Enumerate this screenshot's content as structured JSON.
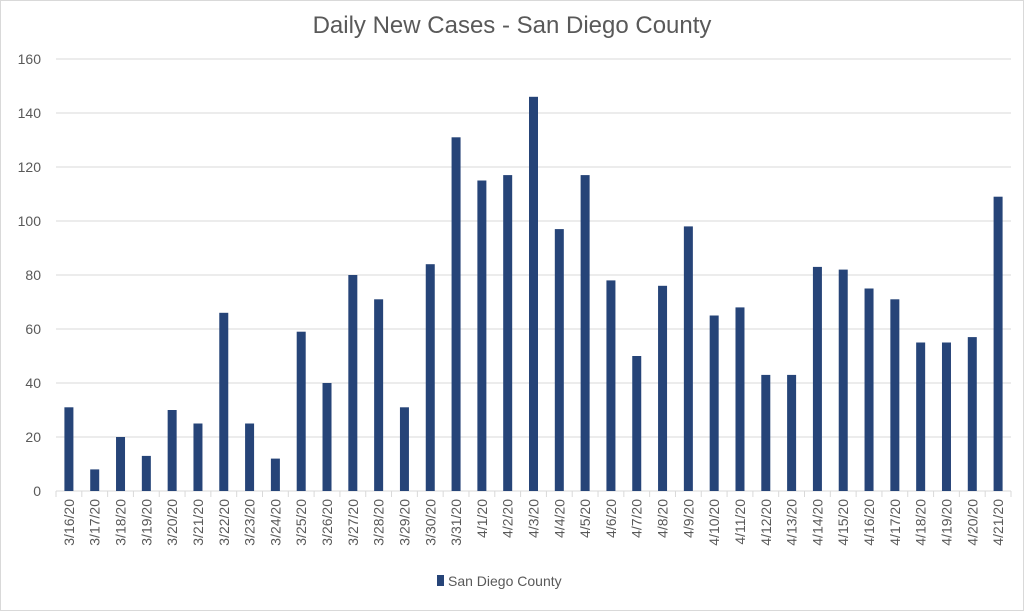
{
  "chart_data": {
    "type": "bar",
    "title": "Daily New Cases - San Diego County",
    "xlabel": "",
    "ylabel": "",
    "ylim": [
      0,
      160
    ],
    "yticks": [
      0,
      20,
      40,
      60,
      80,
      100,
      120,
      140,
      160
    ],
    "grid": true,
    "legend_position": "bottom",
    "color": "#264478",
    "categories": [
      "3/16/20",
      "3/17/20",
      "3/18/20",
      "3/19/20",
      "3/20/20",
      "3/21/20",
      "3/22/20",
      "3/23/20",
      "3/24/20",
      "3/25/20",
      "3/26/20",
      "3/27/20",
      "3/28/20",
      "3/29/20",
      "3/30/20",
      "3/31/20",
      "4/1/20",
      "4/2/20",
      "4/3/20",
      "4/4/20",
      "4/5/20",
      "4/6/20",
      "4/7/20",
      "4/8/20",
      "4/9/20",
      "4/10/20",
      "4/11/20",
      "4/12/20",
      "4/13/20",
      "4/14/20",
      "4/15/20",
      "4/16/20",
      "4/17/20",
      "4/18/20",
      "4/19/20",
      "4/20/20",
      "4/21/20"
    ],
    "series": [
      {
        "name": "San Diego County",
        "values": [
          31,
          8,
          20,
          13,
          30,
          25,
          66,
          25,
          12,
          59,
          40,
          80,
          71,
          31,
          84,
          131,
          115,
          117,
          146,
          97,
          117,
          78,
          50,
          76,
          98,
          65,
          68,
          43,
          43,
          83,
          82,
          75,
          71,
          55,
          55,
          57,
          109
        ]
      }
    ]
  }
}
